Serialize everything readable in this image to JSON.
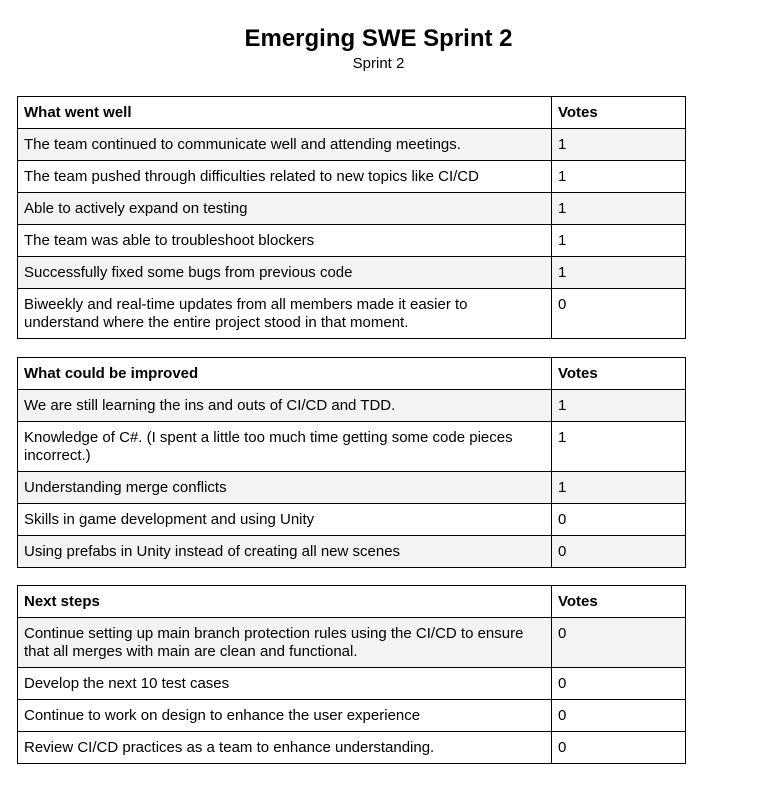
{
  "document": {
    "title": "Emerging SWE Sprint 2",
    "subtitle": "Sprint 2"
  },
  "sections": [
    {
      "header": "What went well",
      "votes_header": "Votes",
      "rows": [
        {
          "text": "The team continued to communicate well and attending meetings.",
          "votes": "1"
        },
        {
          "text": "The team pushed through difficulties related to new topics like CI/CD",
          "votes": "1"
        },
        {
          "text": "Able to actively expand on testing",
          "votes": "1"
        },
        {
          "text": "The team was able to troubleshoot blockers",
          "votes": "1"
        },
        {
          "text": "Successfully fixed some bugs from previous code",
          "votes": "1"
        },
        {
          "text": "Biweekly and real-time updates from all members made it easier to understand where the entire project stood in that moment.",
          "votes": "0"
        }
      ]
    },
    {
      "header": "What could be improved",
      "votes_header": "Votes",
      "rows": [
        {
          "text": "We are still learning the ins and outs of CI/CD and TDD.",
          "votes": "1"
        },
        {
          "text": "Knowledge of C#. (I spent a little too much time getting some code pieces incorrect.)",
          "votes": "1"
        },
        {
          "text": "Understanding merge conflicts",
          "votes": "1"
        },
        {
          "text": "Skills in game development and using Unity",
          "votes": "0"
        },
        {
          "text": "Using prefabs in Unity instead of creating all new scenes",
          "votes": "0"
        }
      ]
    },
    {
      "header": "Next steps",
      "votes_header": "Votes",
      "rows": [
        {
          "text": "Continue setting up main branch protection rules using the CI/CD to ensure that all merges with main are clean and functional.",
          "votes": "0"
        },
        {
          "text": "Develop the next 10 test cases",
          "votes": "0"
        },
        {
          "text": "Continue to work on design to enhance the user experience",
          "votes": "0"
        },
        {
          "text": "Review CI/CD practices as a team to enhance understanding.",
          "votes": "0"
        }
      ]
    }
  ]
}
